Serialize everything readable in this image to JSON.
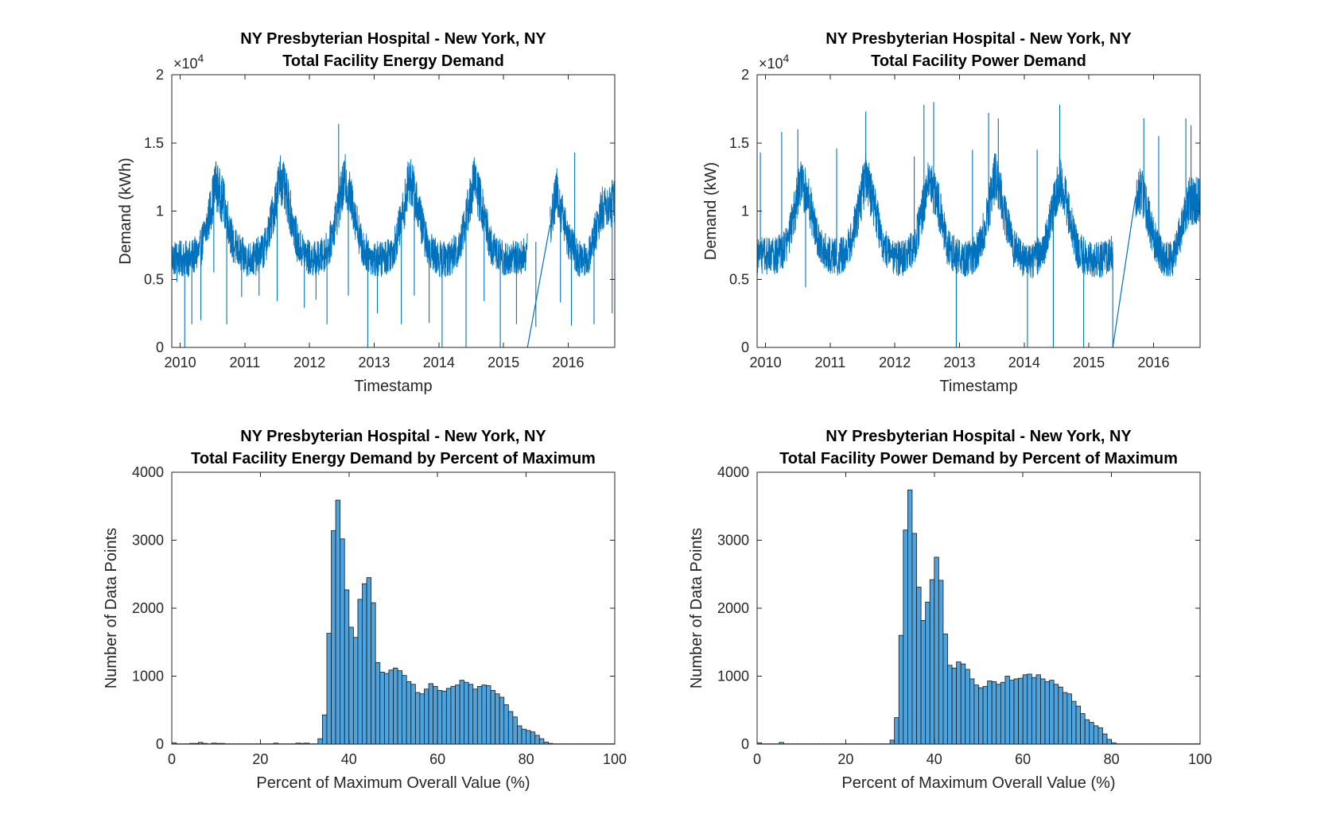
{
  "colors": {
    "line": "#0072BD",
    "bar_fill": "#4DA3DD",
    "bar_edge": "#1A1A1A",
    "axis": "#262626"
  },
  "chart_data": [
    {
      "id": "energy-ts",
      "type": "line",
      "title_line1": "NY Presbyterian Hospital - New York, NY",
      "title_line2": "Total Facility Energy Demand",
      "xlabel": "Timestamp",
      "ylabel": "Demand (kWh)",
      "y_exponent_label": "×10",
      "y_exponent": "4",
      "xlim": [
        2009.87,
        2016.72
      ],
      "ylim": [
        0,
        20000
      ],
      "x_ticks": [
        "2010",
        "2011",
        "2012",
        "2013",
        "2014",
        "2015",
        "2016"
      ],
      "x_tick_values": [
        2010,
        2011,
        2012,
        2013,
        2014,
        2015,
        2016
      ],
      "y_ticks": [
        "0",
        "0.5",
        "1",
        "1.5",
        "2"
      ],
      "y_tick_values": [
        0,
        5000,
        10000,
        15000,
        20000
      ],
      "gap": [
        2015.37,
        2015.72
      ],
      "gap_end_values": [
        0,
        9000
      ],
      "series": [
        {
          "x": [
            2009.87,
            2010.0,
            2010.15,
            2010.3,
            2010.42,
            2010.55,
            2010.68,
            2010.82,
            2011.0,
            2011.15,
            2011.3,
            2011.42,
            2011.55,
            2011.68,
            2011.82,
            2012.0,
            2012.15,
            2012.3,
            2012.42,
            2012.55,
            2012.68,
            2012.82,
            2013.0,
            2013.15,
            2013.3,
            2013.42,
            2013.55,
            2013.68,
            2013.82,
            2014.0,
            2014.15,
            2014.3,
            2014.42,
            2014.55,
            2014.68,
            2014.82,
            2015.0,
            2015.15,
            2015.3,
            2015.37,
            2015.72,
            2015.82,
            2016.0,
            2016.15,
            2016.3,
            2016.42,
            2016.55,
            2016.72
          ],
          "y": [
            6600,
            6500,
            6500,
            7000,
            9000,
            12000,
            10500,
            7500,
            6500,
            6500,
            7200,
            9500,
            12500,
            10500,
            7500,
            6500,
            6500,
            7300,
            9800,
            12300,
            10200,
            7200,
            6500,
            6500,
            7200,
            9300,
            12500,
            10200,
            7400,
            6500,
            6500,
            7200,
            9500,
            12300,
            10000,
            7200,
            6500,
            6500,
            6700,
            7000,
            9000,
            11500,
            8000,
            6500,
            6500,
            8500,
            10500,
            10600
          ]
        }
      ],
      "spikes": [
        [
          2009.95,
          4800
        ],
        [
          2010.07,
          0
        ],
        [
          2010.18,
          1700
        ],
        [
          2010.32,
          2000
        ],
        [
          2010.52,
          5500
        ],
        [
          2010.72,
          1700
        ],
        [
          2010.95,
          3700
        ],
        [
          2011.22,
          3800
        ],
        [
          2011.5,
          3400
        ],
        [
          2011.92,
          2900
        ],
        [
          2012.1,
          3500
        ],
        [
          2012.27,
          1700
        ],
        [
          2012.45,
          16400
        ],
        [
          2012.6,
          3800
        ],
        [
          2012.9,
          0
        ],
        [
          2013.05,
          2500
        ],
        [
          2013.42,
          1700
        ],
        [
          2013.62,
          3800
        ],
        [
          2013.85,
          1800
        ],
        [
          2014.05,
          0
        ],
        [
          2014.42,
          0
        ],
        [
          2014.7,
          3400
        ],
        [
          2014.95,
          0
        ],
        [
          2015.2,
          1700
        ],
        [
          2015.5,
          1500
        ],
        [
          2015.88,
          3300
        ],
        [
          2016.05,
          1600
        ],
        [
          2016.1,
          14300
        ],
        [
          2016.4,
          1700
        ],
        [
          2016.68,
          2500
        ]
      ]
    },
    {
      "id": "power-ts",
      "type": "line",
      "title_line1": "NY Presbyterian Hospital - New York, NY",
      "title_line2": "Total Facility Power Demand",
      "xlabel": "Timestamp",
      "ylabel": "Demand (kW)",
      "y_exponent_label": "×10",
      "y_exponent": "4",
      "xlim": [
        2009.87,
        2016.72
      ],
      "ylim": [
        0,
        20000
      ],
      "x_ticks": [
        "2010",
        "2011",
        "2012",
        "2013",
        "2014",
        "2015",
        "2016"
      ],
      "x_tick_values": [
        2010,
        2011,
        2012,
        2013,
        2014,
        2015,
        2016
      ],
      "y_ticks": [
        "0",
        "0.5",
        "1",
        "1.5",
        "2"
      ],
      "y_tick_values": [
        0,
        5000,
        10000,
        15000,
        20000
      ],
      "gap": [
        2015.37,
        2015.72
      ],
      "gap_end_values": [
        0,
        11000
      ],
      "series": [
        {
          "x": [
            2009.87,
            2010.0,
            2010.15,
            2010.3,
            2010.42,
            2010.55,
            2010.68,
            2010.82,
            2011.0,
            2011.15,
            2011.3,
            2011.42,
            2011.55,
            2011.68,
            2011.82,
            2012.0,
            2012.15,
            2012.3,
            2012.42,
            2012.55,
            2012.68,
            2012.82,
            2013.0,
            2013.15,
            2013.3,
            2013.42,
            2013.55,
            2013.68,
            2013.82,
            2014.0,
            2014.15,
            2014.3,
            2014.42,
            2014.55,
            2014.68,
            2014.82,
            2015.0,
            2015.15,
            2015.3,
            2015.37,
            2015.72,
            2015.82,
            2016.0,
            2016.15,
            2016.3,
            2016.42,
            2016.55,
            2016.72
          ],
          "y": [
            6800,
            6700,
            6700,
            7200,
            9300,
            12300,
            10600,
            7600,
            6700,
            6600,
            7400,
            9700,
            12600,
            10500,
            7600,
            6500,
            6500,
            7400,
            10000,
            12400,
            10300,
            7300,
            6500,
            6500,
            7200,
            9400,
            12600,
            10300,
            7400,
            6400,
            6400,
            7200,
            9600,
            12400,
            10000,
            7200,
            6400,
            6400,
            6600,
            6900,
            11000,
            11500,
            8000,
            6500,
            6500,
            8500,
            10700,
            10800
          ]
        }
      ],
      "spikes": [
        [
          2009.92,
          14300
        ],
        [
          2010.25,
          15800
        ],
        [
          2010.5,
          16000
        ],
        [
          2010.62,
          4400
        ],
        [
          2011.1,
          14600
        ],
        [
          2011.55,
          17300
        ],
        [
          2012.3,
          14000
        ],
        [
          2012.45,
          17800
        ],
        [
          2012.6,
          18000
        ],
        [
          2012.95,
          0
        ],
        [
          2013.2,
          14500
        ],
        [
          2013.45,
          17200
        ],
        [
          2013.6,
          16800
        ],
        [
          2014.05,
          0
        ],
        [
          2014.2,
          14500
        ],
        [
          2014.45,
          0
        ],
        [
          2014.55,
          17800
        ],
        [
          2014.92,
          0
        ],
        [
          2015.37,
          0
        ],
        [
          2015.85,
          16800
        ],
        [
          2016.08,
          15500
        ],
        [
          2016.5,
          16800
        ],
        [
          2016.58,
          16300
        ]
      ]
    },
    {
      "id": "energy-hist",
      "type": "bar",
      "title_line1": "NY Presbyterian Hospital - New York, NY",
      "title_line2": "Total Facility Energy Demand by Percent of Maximum",
      "xlabel": "Percent of Maximum Overall Value (%)",
      "ylabel": "Number of Data Points",
      "xlim": [
        0,
        100
      ],
      "ylim": [
        0,
        4000
      ],
      "x_ticks": [
        "0",
        "20",
        "40",
        "60",
        "80",
        "100"
      ],
      "x_tick_values": [
        0,
        20,
        40,
        60,
        80,
        100
      ],
      "y_ticks": [
        "0",
        "1000",
        "2000",
        "3000",
        "4000"
      ],
      "y_tick_values": [
        0,
        1000,
        2000,
        3000,
        4000
      ],
      "bin_start": 0,
      "bin_width": 1,
      "values": [
        20,
        5,
        5,
        5,
        10,
        10,
        25,
        10,
        5,
        15,
        10,
        10,
        5,
        5,
        5,
        5,
        5,
        5,
        5,
        5,
        5,
        5,
        5,
        15,
        5,
        5,
        5,
        5,
        15,
        10,
        15,
        5,
        5,
        80,
        430,
        1630,
        3140,
        3590,
        3020,
        2270,
        1720,
        1570,
        2130,
        2360,
        2450,
        2080,
        1200,
        1060,
        1040,
        1090,
        1120,
        1080,
        1010,
        920,
        880,
        760,
        740,
        810,
        890,
        850,
        790,
        780,
        820,
        850,
        870,
        940,
        910,
        880,
        810,
        850,
        870,
        860,
        790,
        740,
        690,
        580,
        480,
        400,
        270,
        220,
        200,
        180,
        130,
        80,
        30,
        10,
        5,
        5,
        5,
        5,
        5,
        5,
        5,
        5,
        5,
        5,
        5,
        5,
        5,
        5
      ]
    },
    {
      "id": "power-hist",
      "type": "bar",
      "title_line1": "NY Presbyterian Hospital - New York, NY",
      "title_line2": "Total Facility Power Demand by Percent of Maximum",
      "xlabel": "Percent of Maximum Overall Value (%)",
      "ylabel": "Number of Data Points",
      "xlim": [
        0,
        100
      ],
      "ylim": [
        0,
        4000
      ],
      "x_ticks": [
        "0",
        "20",
        "40",
        "60",
        "80",
        "100"
      ],
      "x_tick_values": [
        0,
        20,
        40,
        60,
        80,
        100
      ],
      "y_ticks": [
        "0",
        "1000",
        "2000",
        "3000",
        "4000"
      ],
      "y_tick_values": [
        0,
        1000,
        2000,
        3000,
        4000
      ],
      "bin_start": 0,
      "bin_width": 1,
      "values": [
        20,
        5,
        5,
        5,
        5,
        25,
        5,
        5,
        5,
        5,
        5,
        5,
        5,
        5,
        5,
        5,
        5,
        5,
        5,
        5,
        5,
        5,
        5,
        5,
        5,
        5,
        5,
        5,
        5,
        5,
        60,
        390,
        1600,
        3150,
        3740,
        3100,
        2310,
        1820,
        2090,
        2420,
        2750,
        2410,
        1620,
        1160,
        1120,
        1210,
        1180,
        1100,
        960,
        870,
        830,
        850,
        930,
        920,
        880,
        910,
        1000,
        940,
        960,
        970,
        1020,
        1030,
        980,
        1020,
        960,
        920,
        940,
        880,
        840,
        760,
        740,
        630,
        560,
        450,
        360,
        320,
        270,
        240,
        150,
        70,
        20,
        5,
        5,
        5,
        5,
        5,
        5,
        5,
        5,
        5,
        5,
        5,
        5,
        5,
        5,
        5,
        5,
        5,
        5,
        5
      ]
    }
  ]
}
